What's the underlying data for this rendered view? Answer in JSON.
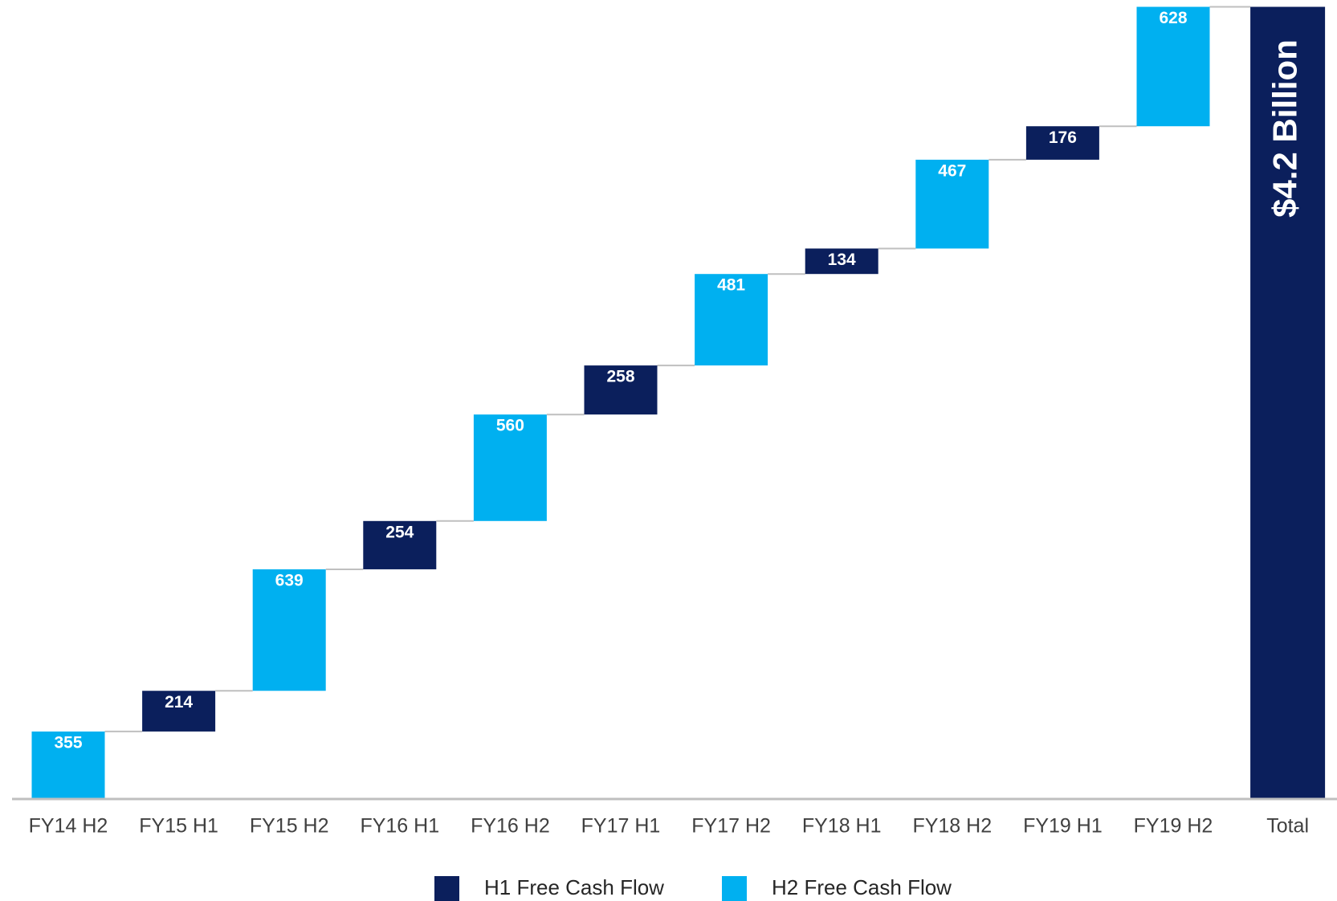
{
  "chart_data": {
    "type": "waterfall",
    "categories": [
      "FY14 H2",
      "FY15 H1",
      "FY15 H2",
      "FY16 H1",
      "FY16 H2",
      "FY17 H1",
      "FY17 H2",
      "FY18 H1",
      "FY18 H2",
      "FY19 H1",
      "FY19 H2"
    ],
    "series": [
      {
        "name": "H1 Free Cash Flow",
        "color": "#0b1f5c",
        "values": [
          null,
          214,
          null,
          254,
          null,
          258,
          null,
          134,
          null,
          176,
          null
        ]
      },
      {
        "name": "H2 Free Cash Flow",
        "color": "#00b0f0",
        "values": [
          355,
          null,
          639,
          null,
          560,
          null,
          481,
          null,
          467,
          null,
          628
        ]
      }
    ],
    "total": {
      "category": "Total",
      "value": 4166,
      "value_label": "$4.2 Billion",
      "color": "#0b1f5c"
    },
    "ylim": [
      0,
      4166
    ]
  }
}
